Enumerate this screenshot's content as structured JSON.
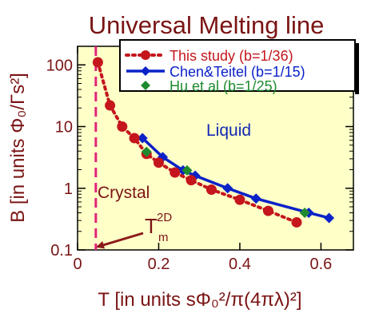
{
  "chart_data": {
    "type": "line",
    "title": "Universal  Melting  line",
    "ylabel": "B  [in units Φ₀/Γs²]",
    "xlabel": "T  [in units sΦ₀²/π(4πλ)²]",
    "x_scale": "linear",
    "y_scale": "log",
    "xlim": [
      0,
      0.68
    ],
    "ylim": [
      0.1,
      200
    ],
    "x_ticks": [
      0,
      0.2,
      0.4,
      0.6
    ],
    "x_tick_labels": [
      "0",
      "0.2",
      "0.4",
      "0.6"
    ],
    "y_ticks": [
      0.1,
      1,
      10,
      100
    ],
    "y_tick_labels": [
      "0.1",
      "1",
      "10",
      "100"
    ],
    "grid": false,
    "legend_position": "top-right",
    "background_color": "#ffffc8",
    "series": [
      {
        "name": "This  study  (b=1/36)",
        "color": "#c4161c",
        "line_style": "dotted",
        "marker": "circle",
        "x": [
          0.05,
          0.08,
          0.11,
          0.14,
          0.17,
          0.2,
          0.24,
          0.28,
          0.33,
          0.4,
          0.47,
          0.54
        ],
        "y": [
          110,
          22,
          10,
          6.5,
          3.6,
          2.6,
          1.8,
          1.35,
          0.95,
          0.65,
          0.43,
          0.28
        ]
      },
      {
        "name": "Chen&Teitel  (b=1/15)",
        "color": "#0a22c8",
        "line_style": "solid",
        "marker": "diamond",
        "x": [
          0.16,
          0.21,
          0.26,
          0.29,
          0.37,
          0.44,
          0.57,
          0.62
        ],
        "y": [
          6.5,
          3.2,
          1.95,
          1.6,
          1.0,
          0.68,
          0.4,
          0.33
        ]
      },
      {
        "name": "Hu  et  al  (b=1/25)",
        "color": "#1e8a2e",
        "line_style": "none",
        "marker": "diamond",
        "x": [
          0.17,
          0.27,
          0.56
        ],
        "y": [
          3.9,
          1.95,
          0.4
        ]
      }
    ],
    "vertical_line": {
      "x": 0.045,
      "color": "#e0247a",
      "style": "dashed"
    },
    "annotations": {
      "liquid": "Liquid",
      "crystal": "Crystal",
      "melting_temp": "T",
      "melting_temp_sub": "m",
      "melting_temp_sup": "2D"
    }
  }
}
